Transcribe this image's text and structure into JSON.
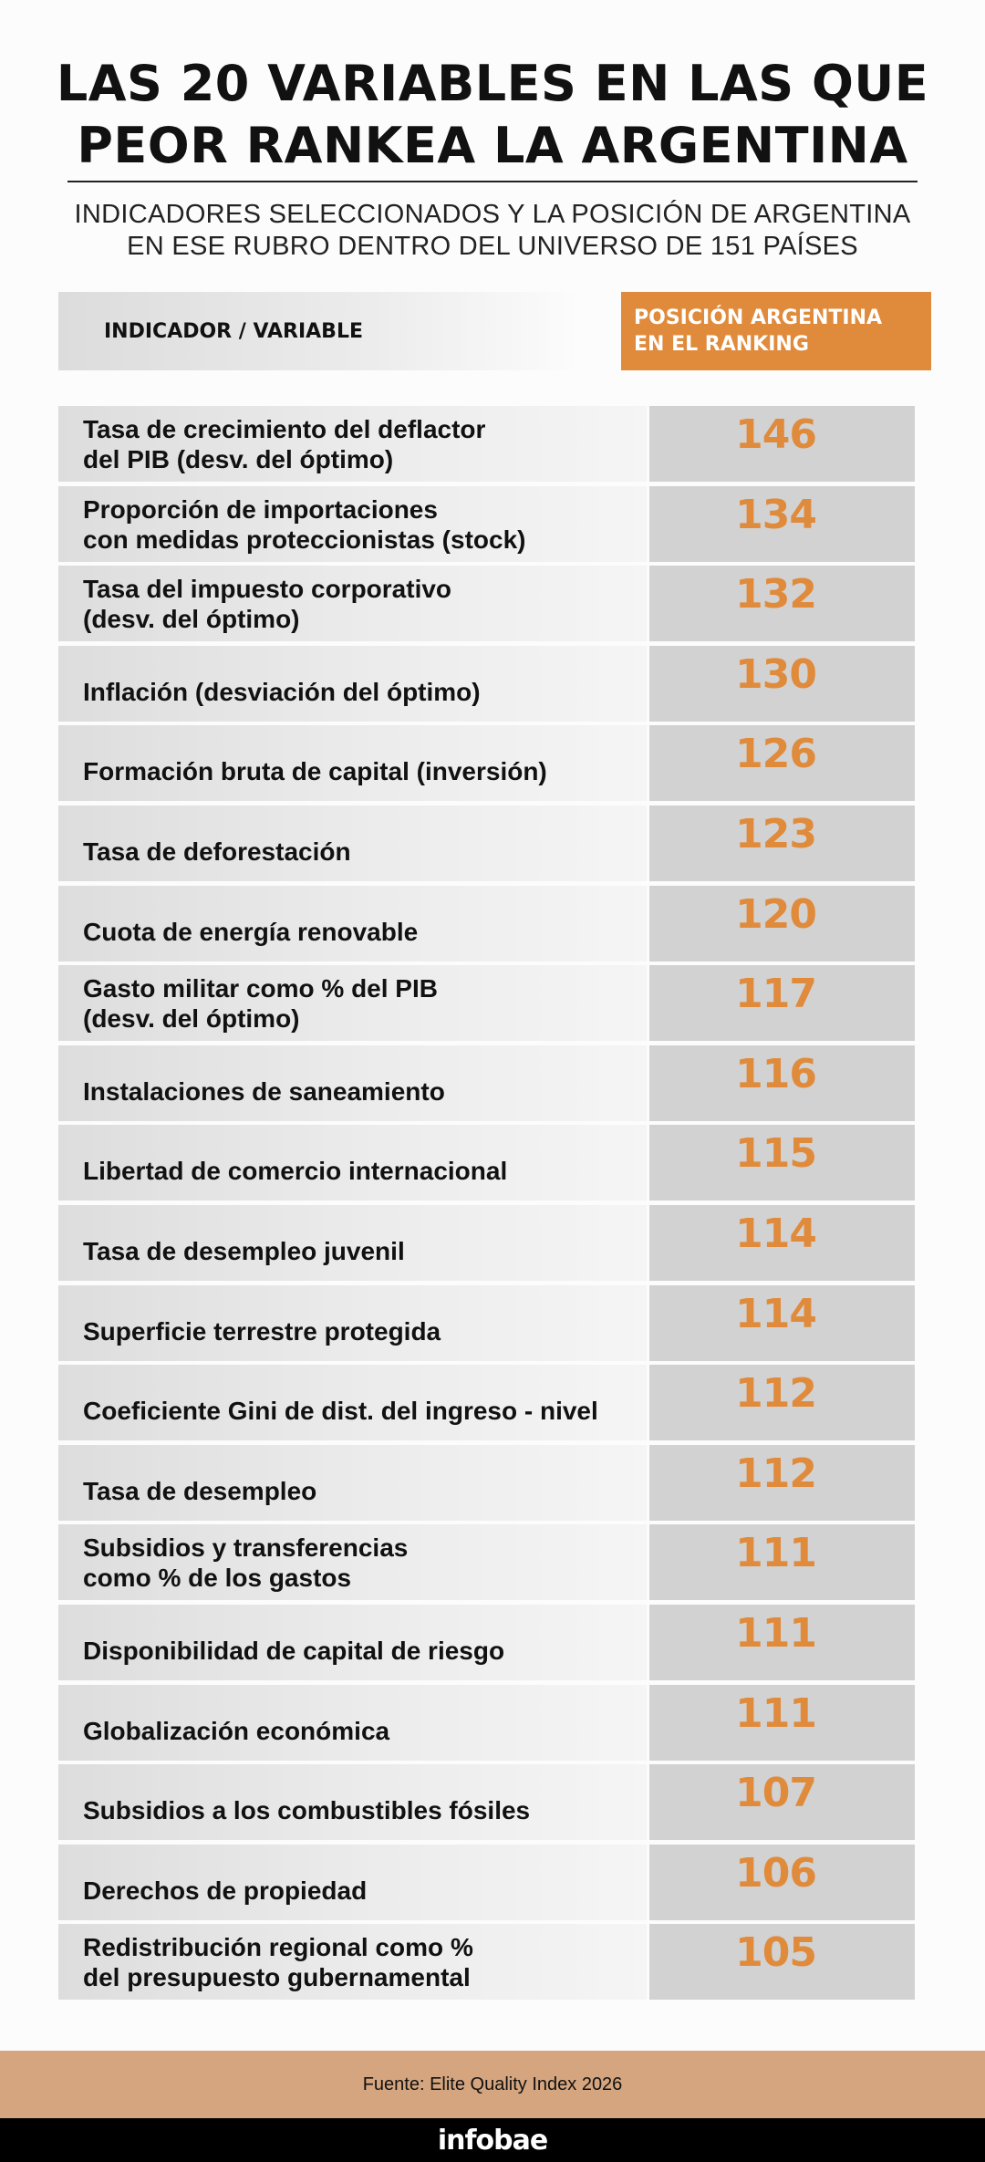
{
  "title": "LAS 20 VARIABLES EN LAS QUE\nPEOR RANKEA LA ARGENTINA",
  "subtitle": "INDICADORES SELECCIONADOS Y LA POSICIÓN DE ARGENTINA\nEN ESE RUBRO DENTRO DEL UNIVERSO DE 151 PAÍSES",
  "header": {
    "indicator": "INDICADOR / VARIABLE",
    "position": "POSICIÓN ARGENTINA\nEN EL RANKING"
  },
  "colors": {
    "accent": "#e08b3c",
    "source_bar": "#d4a57e",
    "value_cell": "#d2d2d2"
  },
  "chart_data": {
    "type": "table",
    "title": "LAS 20 VARIABLES EN LAS QUE PEOR RANKEA LA ARGENTINA",
    "columns": [
      "INDICADOR / VARIABLE",
      "POSICIÓN ARGENTINA EN EL RANKING"
    ],
    "rows": [
      {
        "label": "Tasa de crecimiento del deflactor\ndel PIB (desv. del óptimo)",
        "value": 146
      },
      {
        "label": "Proporción de importaciones\ncon medidas proteccionistas (stock)",
        "value": 134
      },
      {
        "label": "Tasa del impuesto corporativo\n(desv. del óptimo)",
        "value": 132
      },
      {
        "label": "Inflación (desviación del óptimo)",
        "value": 130
      },
      {
        "label": "Formación bruta de capital (inversión)",
        "value": 126
      },
      {
        "label": "Tasa de deforestación",
        "value": 123
      },
      {
        "label": "Cuota de energía renovable",
        "value": 120
      },
      {
        "label": "Gasto militar como % del PIB\n(desv. del óptimo)",
        "value": 117
      },
      {
        "label": "Instalaciones de saneamiento",
        "value": 116
      },
      {
        "label": "Libertad de comercio internacional",
        "value": 115
      },
      {
        "label": "Tasa de desempleo juvenil",
        "value": 114
      },
      {
        "label": "Superficie terrestre protegida",
        "value": 114
      },
      {
        "label": "Coeficiente Gini de dist. del ingreso - nivel",
        "value": 112
      },
      {
        "label": "Tasa de desempleo",
        "value": 112
      },
      {
        "label": "Subsidios y transferencias\ncomo % de los gastos",
        "value": 111
      },
      {
        "label": "Disponibilidad de capital de riesgo",
        "value": 111
      },
      {
        "label": "Globalización económica",
        "value": 111
      },
      {
        "label": "Subsidios a los combustibles fósiles",
        "value": 107
      },
      {
        "label": "Derechos de propiedad",
        "value": 106
      },
      {
        "label": "Redistribución regional como %\ndel presupuesto gubernamental",
        "value": 105
      }
    ]
  },
  "source": "Fuente: Elite Quality Index 2026",
  "brand": "infobae"
}
